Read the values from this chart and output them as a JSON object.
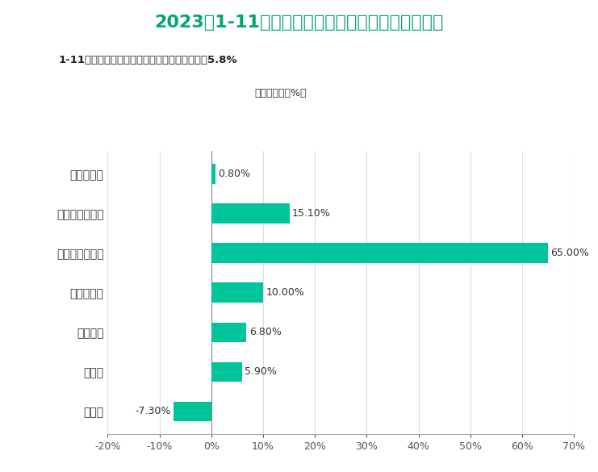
{
  "title": "2023年1-11月保定市规模以上工业增加值增长情况",
  "subtitle": "1-11月份，保定市规模以上工业增加值同比增长5.8%",
  "legend_label": "增加值增长（%）",
  "categories": [
    "采矿业",
    "制造业",
    "电热燃水",
    "装备制造业",
    "电子设备制造业",
    "电气机械制造业",
    "汽车制造业"
  ],
  "values": [
    -7.3,
    5.9,
    6.8,
    10.0,
    65.0,
    15.1,
    0.8
  ],
  "bar_color": "#00C49A",
  "title_color": "#00A86B",
  "subtitle_bg": "#E8E8E8",
  "subtitle_color": "#333333",
  "background_color": "#FFFFFF",
  "xlim": [
    -20,
    70
  ],
  "xtick_values": [
    -20,
    -10,
    0,
    10,
    20,
    30,
    40,
    50,
    60,
    70
  ],
  "xtick_labels": [
    "-20%",
    "-10%",
    "0%",
    "10%",
    "20%",
    "30%",
    "40%",
    "50%",
    "60%",
    "70%"
  ]
}
